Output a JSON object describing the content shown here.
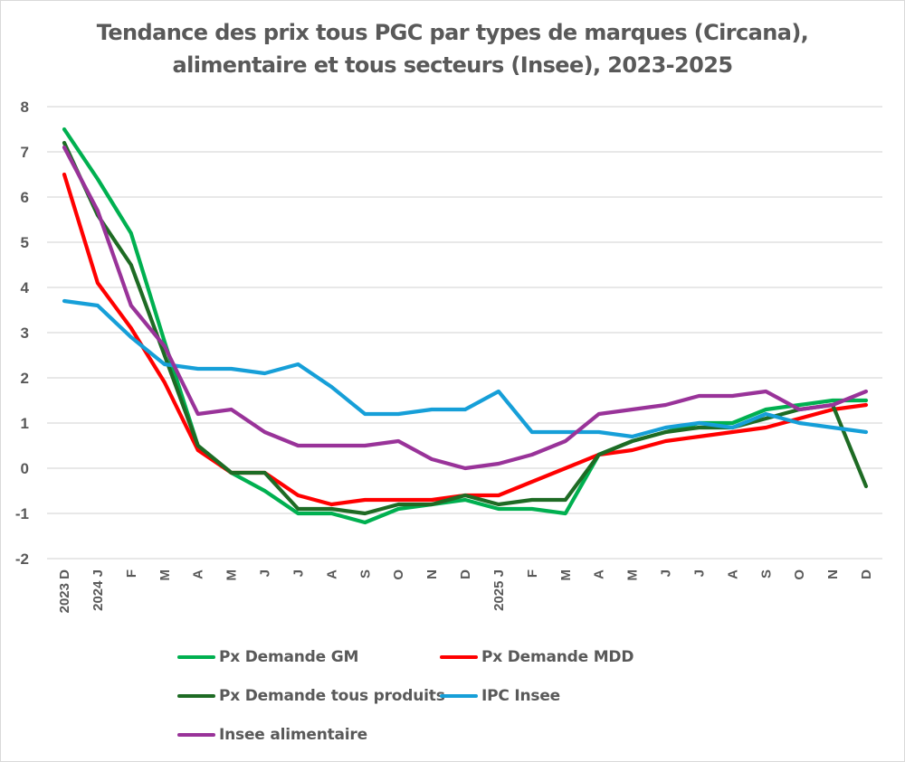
{
  "chart_data": {
    "type": "line",
    "title": "Tendance des prix tous PGC par types de marques (Circana), alimentaire et tous secteurs (Insee), 2023-2025",
    "title_lines": [
      "Tendance des prix tous PGC par types de marques (Circana),",
      "alimentaire et tous secteurs (Insee), 2023-2025"
    ],
    "xlabel": "",
    "ylabel": "",
    "ylim": [
      -2,
      8
    ],
    "yticks": [
      8,
      7,
      6,
      5,
      4,
      3,
      2,
      1,
      0,
      -1,
      -2
    ],
    "grid": true,
    "legend_position": "bottom",
    "categories": [
      "2023 D",
      "2024 J",
      "F",
      "M",
      "A",
      "M",
      "J",
      "J",
      "A",
      "S",
      "O",
      "N",
      "D",
      "2025 J",
      "F",
      "M",
      "A",
      "M",
      "J",
      "J",
      "A",
      "S",
      "O",
      "N",
      "D"
    ],
    "series": [
      {
        "name": "Px Demande GM",
        "color": "#00b050",
        "values": [
          7.5,
          6.4,
          5.2,
          2.8,
          0.5,
          -0.1,
          -0.5,
          -1.0,
          -1.0,
          -1.2,
          -0.9,
          -0.8,
          -0.7,
          -0.9,
          -0.9,
          -1.0,
          0.3,
          0.6,
          0.8,
          1.0,
          1.0,
          1.3,
          1.4,
          1.5,
          1.5
        ]
      },
      {
        "name": "Px Demande MDD",
        "color": "#ff0000",
        "values": [
          6.5,
          4.1,
          3.1,
          1.9,
          0.4,
          -0.1,
          -0.1,
          -0.6,
          -0.8,
          -0.7,
          -0.7,
          -0.7,
          -0.6,
          -0.6,
          -0.3,
          0.0,
          0.3,
          0.4,
          0.6,
          0.7,
          0.8,
          0.9,
          1.1,
          1.3,
          1.4
        ]
      },
      {
        "name": "Px Demande tous produits",
        "color": "#1e6b24",
        "values": [
          7.2,
          5.6,
          4.5,
          2.5,
          0.5,
          -0.1,
          -0.1,
          -0.9,
          -0.9,
          -1.0,
          -0.8,
          -0.8,
          -0.6,
          -0.8,
          -0.7,
          -0.7,
          0.3,
          0.6,
          0.8,
          0.9,
          0.9,
          1.1,
          1.3,
          1.4,
          -0.4
        ]
      },
      {
        "name": "IPC Insee",
        "color": "#169fd8",
        "values": [
          3.7,
          3.6,
          2.9,
          2.3,
          2.2,
          2.2,
          2.1,
          2.3,
          1.8,
          1.2,
          1.2,
          1.3,
          1.3,
          1.7,
          0.8,
          0.8,
          0.8,
          0.7,
          0.9,
          1.0,
          0.9,
          1.2,
          1.0,
          0.9,
          0.8
        ]
      },
      {
        "name": "Insee alimentaire",
        "color": "#993399",
        "values": [
          7.1,
          5.7,
          3.6,
          2.7,
          1.2,
          1.3,
          0.8,
          0.5,
          0.5,
          0.5,
          0.6,
          0.2,
          0.0,
          0.1,
          0.3,
          0.6,
          1.2,
          1.3,
          1.4,
          1.6,
          1.6,
          1.7,
          1.3,
          1.4,
          1.7
        ]
      }
    ]
  }
}
